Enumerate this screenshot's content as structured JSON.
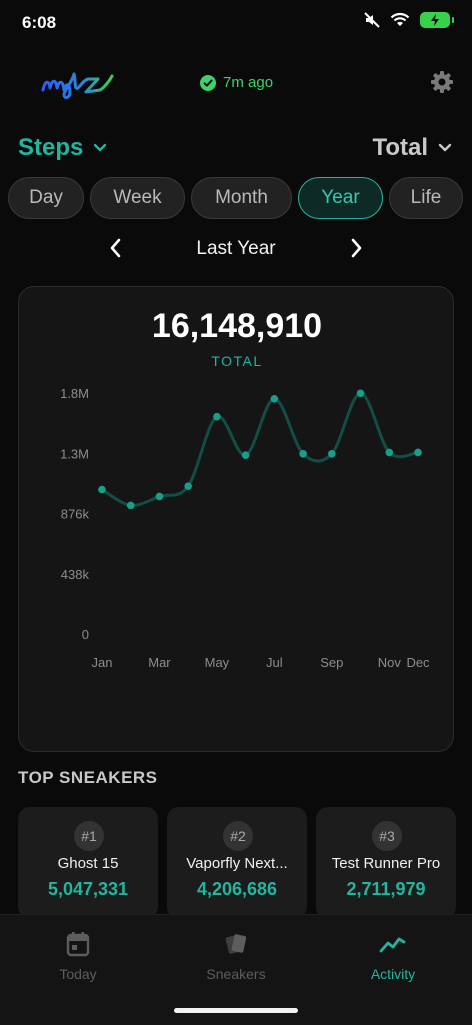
{
  "status_bar": {
    "time": "6:08"
  },
  "header": {
    "logo_text": "mylz",
    "sync_text": "7m ago"
  },
  "selectors": {
    "metric": "Steps",
    "aggregation": "Total"
  },
  "tabs": [
    {
      "label": "Day"
    },
    {
      "label": "Week"
    },
    {
      "label": "Month"
    },
    {
      "label": "Year",
      "active": true
    },
    {
      "label": "Life"
    }
  ],
  "period": {
    "label": "Last Year"
  },
  "summary": {
    "total": "16,148,910",
    "total_label": "TOTAL"
  },
  "chart_data": {
    "type": "line",
    "title": "",
    "x": [
      "Jan",
      "Feb",
      "Mar",
      "Apr",
      "May",
      "Jun",
      "Jul",
      "Aug",
      "Sep",
      "Oct",
      "Nov",
      "Dec"
    ],
    "x_tick_labels": [
      "Jan",
      "Mar",
      "May",
      "Jul",
      "Sep",
      "Nov",
      "Dec"
    ],
    "series": [
      {
        "values": [
          1050000,
          935000,
          1000000,
          1075000,
          1580000,
          1300000,
          1710000,
          1310000,
          1310000,
          1750000,
          1320000,
          1320000
        ]
      }
    ],
    "y_ticks": [
      "0",
      "438k",
      "876k",
      "1.3M",
      "1.8M"
    ],
    "ylim": [
      0,
      1752000
    ],
    "grid": false,
    "color": "#1a9e8c"
  },
  "top_sneakers": {
    "title": "TOP SNEAKERS",
    "items": [
      {
        "rank": "#1",
        "name": "Ghost 15",
        "steps": "5,047,331"
      },
      {
        "rank": "#2",
        "name": "Vaporfly Next...",
        "steps": "4,206,686"
      },
      {
        "rank": "#3",
        "name": "Test Runner Pro",
        "steps": "2,711,979"
      }
    ]
  },
  "tabbar": {
    "items": [
      {
        "label": "Today",
        "icon": "calendar-icon"
      },
      {
        "label": "Sneakers",
        "icon": "sneaker-cards-icon"
      },
      {
        "label": "Activity",
        "icon": "activity-line-icon",
        "active": true
      }
    ]
  },
  "colors": {
    "accent": "#22b5a0",
    "sync_green": "#3bd36a",
    "background": "#0a0a0a"
  }
}
